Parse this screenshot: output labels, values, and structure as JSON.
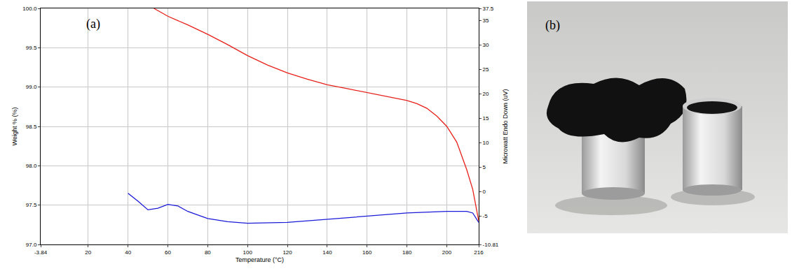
{
  "chart_data": {
    "type": "line",
    "x_label": "Temperature (°C)",
    "y_label": "Weight % (%)",
    "y2_label": "Microwatt Endo Down (uV)",
    "annotations": [
      {
        "text": "(a)"
      }
    ],
    "xlim": [
      -3.84,
      216
    ],
    "xticks": [
      -3.84,
      20,
      40,
      60,
      80,
      100,
      120,
      140,
      160,
      180,
      200,
      216
    ],
    "ylim": [
      97.0,
      100.0
    ],
    "yticks": [
      {
        "value": 97.0,
        "label": "97.0"
      },
      {
        "value": 97.5,
        "label": "97.5"
      },
      {
        "value": 98.0,
        "label": "98.0"
      },
      {
        "value": 98.5,
        "label": "98.5"
      },
      {
        "value": 99.0,
        "label": "99.0"
      },
      {
        "value": 99.5,
        "label": "99.5"
      },
      {
        "value": 100.0,
        "label": "100.0"
      }
    ],
    "y2lim": [
      -10.81,
      37.5
    ],
    "y2ticks": [
      -10.81,
      -5,
      0,
      5,
      10,
      15,
      20,
      25,
      30,
      35,
      37.5
    ],
    "grid": true,
    "series": [
      {
        "color": "#e8201a",
        "x": [
          53,
          60,
          70,
          80,
          90,
          100,
          110,
          120,
          130,
          140,
          150,
          160,
          170,
          180,
          185,
          190,
          195,
          200,
          205,
          210,
          213,
          216
        ],
        "values": [
          100.0,
          99.9,
          99.79,
          99.67,
          99.54,
          99.4,
          99.28,
          99.18,
          99.1,
          99.03,
          98.98,
          98.93,
          98.88,
          98.83,
          98.79,
          98.73,
          98.63,
          98.5,
          98.3,
          97.95,
          97.7,
          97.3
        ]
      },
      {
        "color": "#1a1ad8",
        "axis": "y2",
        "x": [
          40,
          45,
          50,
          55,
          60,
          65,
          70,
          80,
          90,
          100,
          120,
          140,
          160,
          180,
          200,
          210,
          213,
          216
        ],
        "values": [
          -0.34,
          -1.95,
          -3.72,
          -3.4,
          -2.6,
          -2.92,
          -4.05,
          -5.5,
          -6.14,
          -6.46,
          -6.3,
          -5.66,
          -5.01,
          -4.37,
          -4.05,
          -4.05,
          -4.37,
          -6.3
        ]
      }
    ]
  },
  "panel_b": {
    "label": "(b)"
  }
}
